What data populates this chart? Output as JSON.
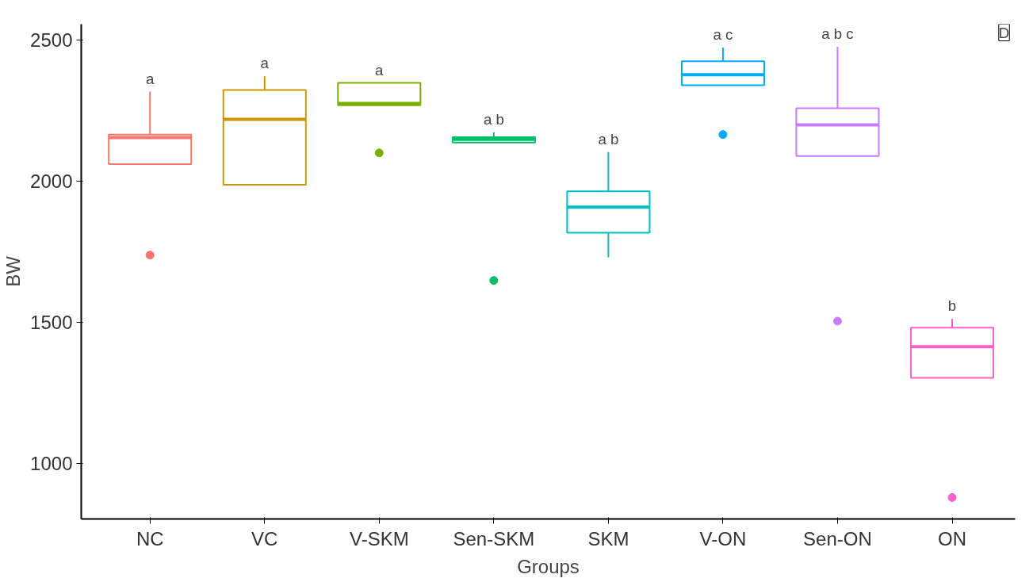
{
  "chart_data": {
    "type": "box",
    "xlabel": "Groups",
    "ylabel": "BW",
    "categories": [
      "NC",
      "VC",
      "V-SKM",
      "Sen-SKM",
      "SKM",
      "V-ON",
      "Sen-ON",
      "ON"
    ],
    "colors": [
      "#f8766d",
      "#cd9600",
      "#7cae00",
      "#00be67",
      "#00bfc4",
      "#00a9ff",
      "#c77cff",
      "#ff61cc"
    ],
    "boxes": [
      {
        "low": 2059,
        "q1": 2059,
        "median": 2153,
        "q3": 2164,
        "high": 2316,
        "outliers": [
          1737
        ]
      },
      {
        "low": 1986,
        "q1": 1986,
        "median": 2218,
        "q3": 2322,
        "high": 2370
      },
      {
        "low": 2268,
        "q1": 2268,
        "median": 2274,
        "q3": 2347,
        "high": 2347,
        "outliers": [
          2099
        ]
      },
      {
        "low": 2136,
        "q1": 2136,
        "median": 2147,
        "q3": 2155,
        "high": 2172,
        "outliers": [
          1647
        ]
      },
      {
        "low": 1729,
        "q1": 1816,
        "median": 1907,
        "q3": 1963,
        "high": 2102
      },
      {
        "low": 2339,
        "q1": 2339,
        "median": 2376,
        "q3": 2424,
        "high": 2472,
        "outliers": [
          2164
        ]
      },
      {
        "low": 2088,
        "q1": 2088,
        "median": 2198,
        "q3": 2257,
        "high": 2475,
        "outliers": [
          1503
        ]
      },
      {
        "low": 1302,
        "q1": 1302,
        "median": 1412,
        "q3": 1480,
        "high": 1511,
        "outliers": [
          878
        ]
      }
    ],
    "ylim": [
      802,
      2555
    ],
    "yticks": [
      1000,
      1500,
      2000,
      2500
    ],
    "grid": false,
    "annotations": [
      "a",
      "a",
      "a",
      "a b",
      "a b",
      "a c",
      "a b c",
      "b",
      "D"
    ]
  }
}
